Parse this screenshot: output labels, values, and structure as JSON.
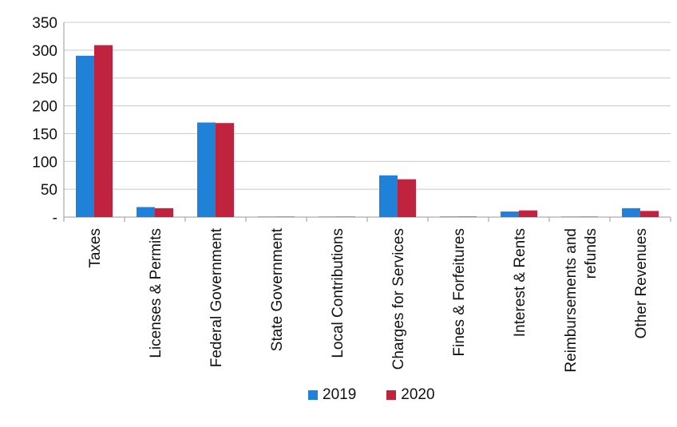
{
  "chart_data": {
    "type": "bar",
    "title": "",
    "xlabel": "",
    "ylabel": "",
    "ylim": [
      0,
      350
    ],
    "yticks": [
      0,
      50,
      100,
      150,
      200,
      250,
      300,
      350
    ],
    "ytick_labels": [
      "-",
      "50",
      "100",
      "150",
      "200",
      "250",
      "300",
      "350"
    ],
    "grid": true,
    "legend_position": "bottom",
    "categories": [
      "Taxes",
      "Licenses & Permits",
      "Federal Government",
      "State Government",
      "Local Contributions",
      "Charges for Services",
      "Fines & Forfeitures",
      "Interest & Rents",
      "Reimbursements and refunds",
      "Other Revenues"
    ],
    "category_label_lines": [
      [
        "Taxes"
      ],
      [
        "Licenses & Permits"
      ],
      [
        "Federal Government"
      ],
      [
        "State Government"
      ],
      [
        "Local Contributions"
      ],
      [
        "Charges for Services"
      ],
      [
        "Fines & Forfeitures"
      ],
      [
        "Interest & Rents"
      ],
      [
        "Reimbursements and",
        "refunds"
      ],
      [
        "Other Revenues"
      ]
    ],
    "series": [
      {
        "name": "2019",
        "color": "#1f82d8",
        "values": [
          290,
          18,
          170,
          0,
          0,
          75,
          1,
          10,
          0,
          16
        ]
      },
      {
        "name": "2020",
        "color": "#c0233e",
        "values": [
          309,
          16,
          169,
          0,
          0,
          68,
          1,
          12,
          0,
          11
        ]
      }
    ]
  }
}
